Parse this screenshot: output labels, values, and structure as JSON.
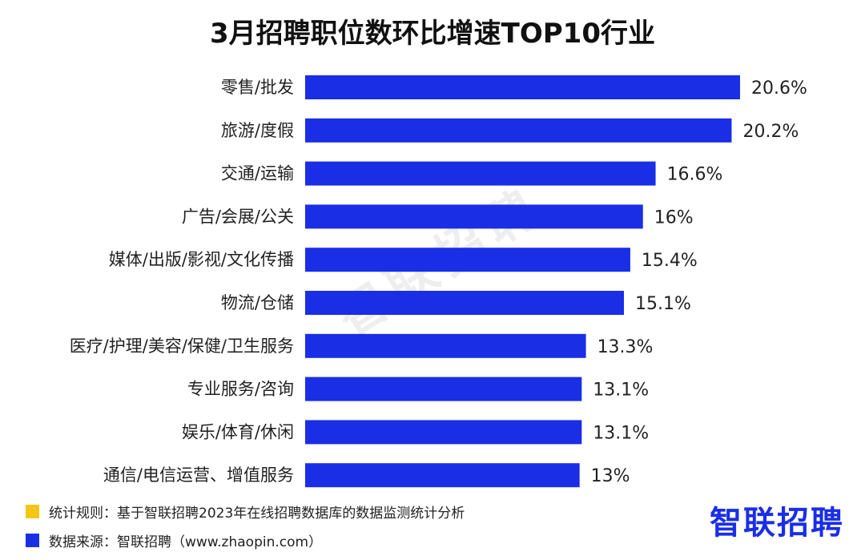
{
  "watermark": "智联招聘",
  "footer": {
    "rule": {
      "color": "#f5c518",
      "text": "统计规则：基于智联招聘2023年在线招聘数据库的数据监测统计分析"
    },
    "source": {
      "color": "#1a2ee6",
      "text": "数据来源：智联招聘（www.zhaopin.com）"
    },
    "logo": "智联招聘"
  },
  "chart_data": {
    "type": "bar",
    "orientation": "horizontal",
    "title": "3月招聘职位数环比增速TOP10行业",
    "bar_color": "#1a2ee6",
    "value_suffix": "%",
    "xlim": [
      0,
      20.6
    ],
    "categories": [
      "零售/批发",
      "旅游/度假",
      "交通/运输",
      "广告/会展/公关",
      "媒体/出版/影视/文化传播",
      "物流/仓储",
      "医疗/护理/美容/保健/卫生服务",
      "专业服务/咨询",
      "娱乐/体育/休闲",
      "通信/电信运营、增值服务"
    ],
    "values": [
      20.6,
      20.2,
      16.6,
      16,
      15.4,
      15.1,
      13.3,
      13.1,
      13.1,
      13
    ],
    "value_labels": [
      "20.6%",
      "20.2%",
      "16.6%",
      "16%",
      "15.4%",
      "15.1%",
      "13.3%",
      "13.1%",
      "13.1%",
      "13%"
    ]
  }
}
